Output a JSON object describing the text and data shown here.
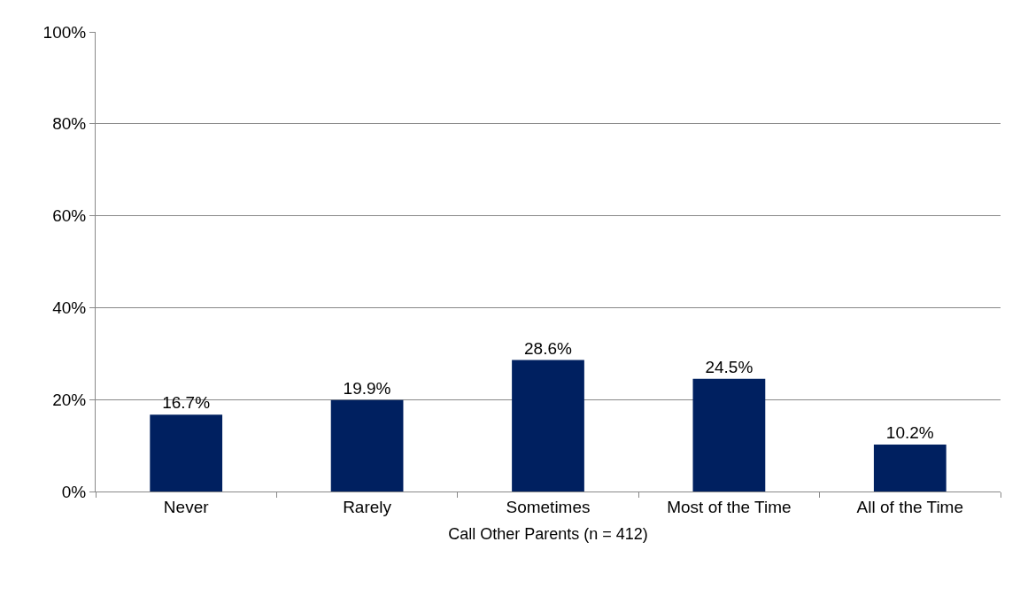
{
  "chart_data": {
    "type": "bar",
    "xlabel": "Call Other Parents (n = 412)",
    "categories": [
      "Never",
      "Rarely",
      "Sometimes",
      "Most of the Time",
      "All of the Time"
    ],
    "values": [
      16.7,
      19.9,
      28.6,
      24.5,
      10.2
    ],
    "value_labels": [
      "16.7%",
      "19.9%",
      "28.6%",
      "24.5%",
      "10.2%"
    ],
    "color": "#002060",
    "ylim": [
      0,
      100
    ],
    "yticks": [
      {
        "value": 0,
        "label": "0%"
      },
      {
        "value": 20,
        "label": "20%"
      },
      {
        "value": 40,
        "label": "40%"
      },
      {
        "value": 60,
        "label": "60%"
      },
      {
        "value": 80,
        "label": "80%"
      },
      {
        "value": 100,
        "label": "100%"
      }
    ],
    "grid": "y",
    "legend": false
  }
}
